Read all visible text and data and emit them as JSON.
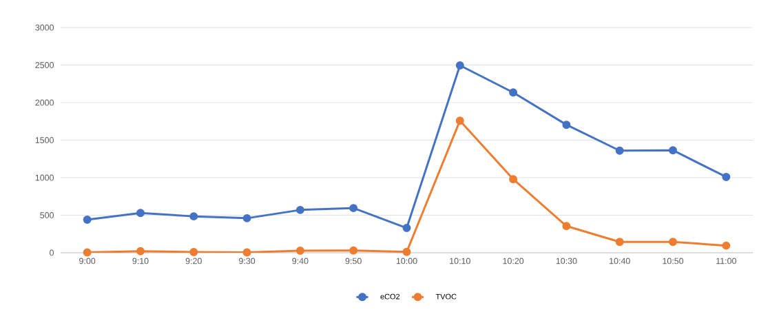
{
  "chart_data": {
    "type": "line",
    "categories": [
      "9:00",
      "9:10",
      "9:20",
      "9:30",
      "9:40",
      "9:50",
      "10:00",
      "10:10",
      "10:20",
      "10:30",
      "10:40",
      "10:50",
      "11:00"
    ],
    "series": [
      {
        "name": "eCO2",
        "color": "#4472c4",
        "values": [
          440,
          530,
          485,
          460,
          570,
          595,
          330,
          2495,
          2135,
          1705,
          1360,
          1365,
          1010
        ]
      },
      {
        "name": "TVOC",
        "color": "#ed7d31",
        "values": [
          5,
          20,
          10,
          5,
          28,
          30,
          12,
          1760,
          980,
          355,
          145,
          145,
          95
        ]
      }
    ],
    "ylim": [
      0,
      3000
    ],
    "yticks": [
      0,
      500,
      1000,
      1500,
      2000,
      2500,
      3000
    ],
    "grid": "y",
    "legend": "bottom",
    "marker": "circle",
    "line_style": "solid"
  }
}
